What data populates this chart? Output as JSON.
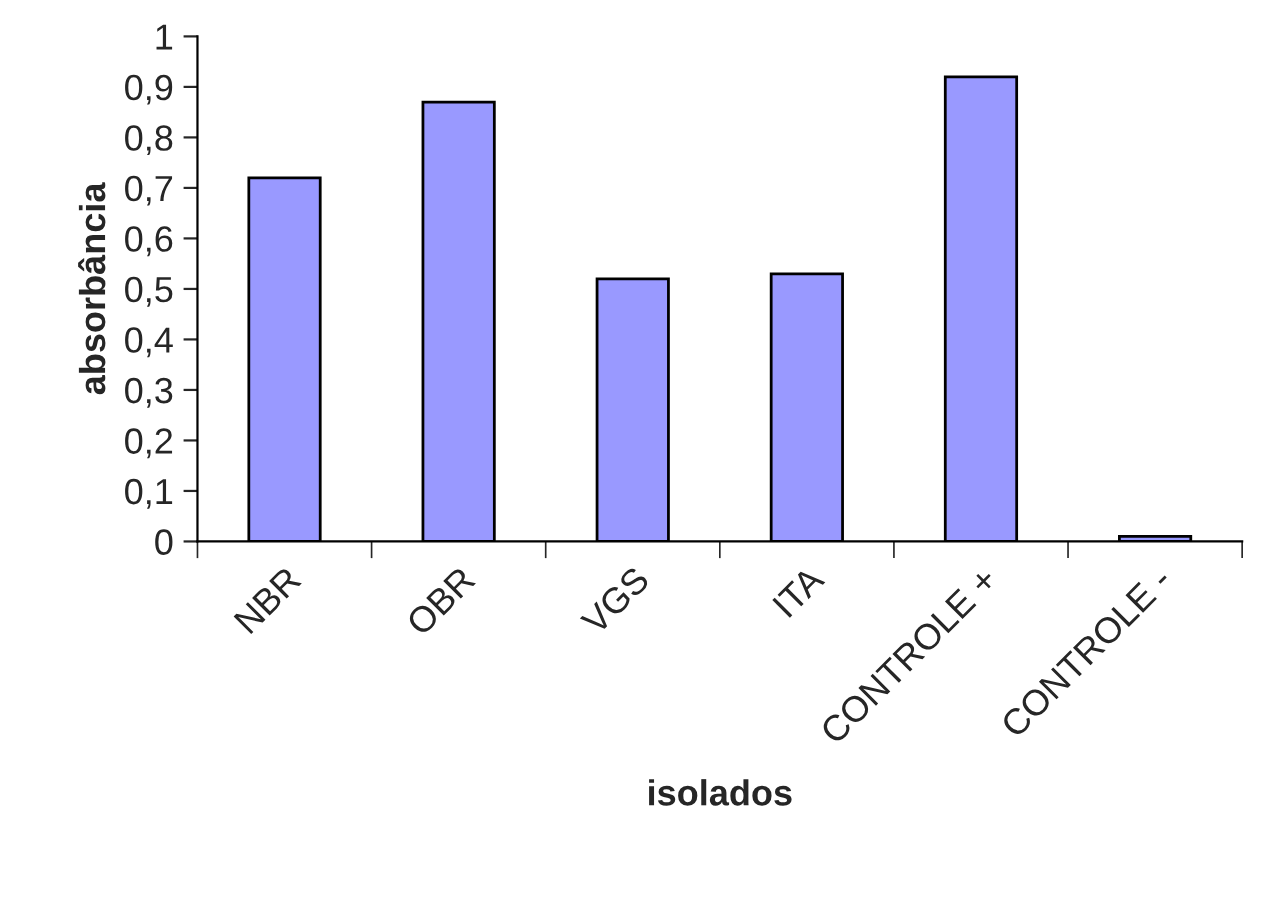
{
  "chart_data": {
    "type": "bar",
    "xlabel": "isolados",
    "ylabel": "absorbância",
    "categories": [
      "NBR",
      "OBR",
      "VGS",
      "ITA",
      "CONTROLE +",
      "CONTROLE -"
    ],
    "series": [
      {
        "color": "#9999ff",
        "values": [
          0.72,
          0.87,
          0.52,
          0.53,
          0.92,
          0.01
        ]
      }
    ],
    "ylim": [
      0,
      1
    ],
    "yticks": [
      0,
      {
        "value": 0.1,
        "label": "0,1"
      },
      {
        "value": 0.2,
        "label": "0,2"
      },
      {
        "value": 0.3,
        "label": "0,3"
      },
      {
        "value": 0.4,
        "label": "0,4"
      },
      {
        "value": 0.5,
        "label": "0,5"
      },
      {
        "value": 0.6,
        "label": "0,6"
      },
      {
        "value": 0.7,
        "label": "0,7"
      },
      {
        "value": 0.8,
        "label": "0,8"
      },
      {
        "value": 0.9,
        "label": "0,9"
      },
      1
    ],
    "grid": false,
    "legend": false
  }
}
